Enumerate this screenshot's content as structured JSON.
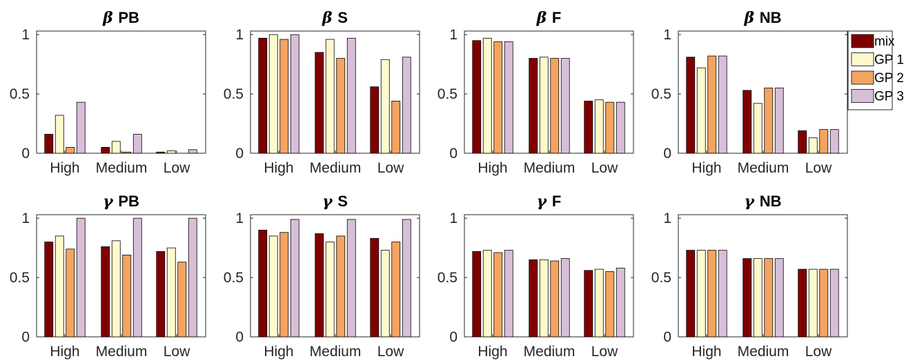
{
  "legend": [
    {
      "label": "mix",
      "color": "#800000"
    },
    {
      "label": "GP 1",
      "color": "#FFFACD"
    },
    {
      "label": "GP 2",
      "color": "#F4A460"
    },
    {
      "label": "GP 3",
      "color": "#D8BFD8"
    }
  ],
  "chart_data": [
    {
      "type": "bar",
      "title_greek": "β",
      "title_text": "PB",
      "categories": [
        "High",
        "Medium",
        "Low"
      ],
      "ylim": [
        0,
        1.03
      ],
      "yticks": [
        0,
        0.5,
        1
      ],
      "ytick_labels": [
        "0",
        "0.5",
        "1"
      ],
      "series": [
        {
          "name": "mix",
          "values": [
            0.16,
            0.05,
            0.01
          ]
        },
        {
          "name": "GP 1",
          "values": [
            0.32,
            0.1,
            0.02
          ]
        },
        {
          "name": "GP 2",
          "values": [
            0.05,
            0.01,
            0.0
          ]
        },
        {
          "name": "GP 3",
          "values": [
            0.43,
            0.16,
            0.03
          ]
        }
      ]
    },
    {
      "type": "bar",
      "title_greek": "β",
      "title_text": "S",
      "categories": [
        "High",
        "Medium",
        "Low"
      ],
      "ylim": [
        0,
        1.03
      ],
      "yticks": [
        0,
        0.5,
        1
      ],
      "ytick_labels": [
        "0",
        "0.5",
        "1"
      ],
      "series": [
        {
          "name": "mix",
          "values": [
            0.97,
            0.85,
            0.56
          ]
        },
        {
          "name": "GP 1",
          "values": [
            1.0,
            0.96,
            0.79
          ]
        },
        {
          "name": "GP 2",
          "values": [
            0.96,
            0.8,
            0.44
          ]
        },
        {
          "name": "GP 3",
          "values": [
            1.0,
            0.97,
            0.81
          ]
        }
      ]
    },
    {
      "type": "bar",
      "title_greek": "β",
      "title_text": "F",
      "categories": [
        "High",
        "Medium",
        "Low"
      ],
      "ylim": [
        0,
        1.03
      ],
      "yticks": [
        0,
        0.5,
        1
      ],
      "ytick_labels": [
        "0",
        "0.5",
        "1"
      ],
      "series": [
        {
          "name": "mix",
          "values": [
            0.95,
            0.8,
            0.44
          ]
        },
        {
          "name": "GP 1",
          "values": [
            0.97,
            0.81,
            0.45
          ]
        },
        {
          "name": "GP 2",
          "values": [
            0.94,
            0.8,
            0.43
          ]
        },
        {
          "name": "GP 3",
          "values": [
            0.94,
            0.8,
            0.43
          ]
        }
      ]
    },
    {
      "type": "bar",
      "title_greek": "β",
      "title_text": "NB",
      "categories": [
        "High",
        "Medium",
        "Low"
      ],
      "ylim": [
        0,
        1.03
      ],
      "yticks": [
        0,
        0.5,
        1
      ],
      "ytick_labels": [
        "0",
        "0.5",
        "1"
      ],
      "series": [
        {
          "name": "mix",
          "values": [
            0.81,
            0.53,
            0.19
          ]
        },
        {
          "name": "GP 1",
          "values": [
            0.72,
            0.42,
            0.13
          ]
        },
        {
          "name": "GP 2",
          "values": [
            0.82,
            0.55,
            0.2
          ]
        },
        {
          "name": "GP 3",
          "values": [
            0.82,
            0.55,
            0.2
          ]
        }
      ]
    },
    {
      "type": "bar",
      "title_greek": "γ",
      "title_text": "PB",
      "categories": [
        "High",
        "Medium",
        "Low"
      ],
      "ylim": [
        0,
        1.03
      ],
      "yticks": [
        0,
        0.5,
        1
      ],
      "ytick_labels": [
        "0",
        "0.5",
        "1"
      ],
      "series": [
        {
          "name": "mix",
          "values": [
            0.8,
            0.76,
            0.72
          ]
        },
        {
          "name": "GP 1",
          "values": [
            0.85,
            0.81,
            0.75
          ]
        },
        {
          "name": "GP 2",
          "values": [
            0.74,
            0.69,
            0.63
          ]
        },
        {
          "name": "GP 3",
          "values": [
            1.0,
            1.0,
            1.0
          ]
        }
      ]
    },
    {
      "type": "bar",
      "title_greek": "γ",
      "title_text": "S",
      "categories": [
        "High",
        "Medium",
        "Low"
      ],
      "ylim": [
        0,
        1.03
      ],
      "yticks": [
        0,
        0.5,
        1
      ],
      "ytick_labels": [
        "0",
        "0.5",
        "1"
      ],
      "series": [
        {
          "name": "mix",
          "values": [
            0.9,
            0.87,
            0.83
          ]
        },
        {
          "name": "GP 1",
          "values": [
            0.85,
            0.8,
            0.73
          ]
        },
        {
          "name": "GP 2",
          "values": [
            0.88,
            0.85,
            0.8
          ]
        },
        {
          "name": "GP 3",
          "values": [
            0.99,
            0.99,
            0.99
          ]
        }
      ]
    },
    {
      "type": "bar",
      "title_greek": "γ",
      "title_text": "F",
      "categories": [
        "High",
        "Medium",
        "Low"
      ],
      "ylim": [
        0,
        1.03
      ],
      "yticks": [
        0,
        0.5,
        1
      ],
      "ytick_labels": [
        "0",
        "0.5",
        "1"
      ],
      "series": [
        {
          "name": "mix",
          "values": [
            0.72,
            0.65,
            0.56
          ]
        },
        {
          "name": "GP 1",
          "values": [
            0.73,
            0.65,
            0.57
          ]
        },
        {
          "name": "GP 2",
          "values": [
            0.71,
            0.64,
            0.55
          ]
        },
        {
          "name": "GP 3",
          "values": [
            0.73,
            0.66,
            0.58
          ]
        }
      ]
    },
    {
      "type": "bar",
      "title_greek": "γ",
      "title_text": "NB",
      "categories": [
        "High",
        "Medium",
        "Low"
      ],
      "ylim": [
        0,
        1.03
      ],
      "yticks": [
        0,
        0.5,
        1
      ],
      "ytick_labels": [
        "0",
        "0.5",
        "1"
      ],
      "series": [
        {
          "name": "mix",
          "values": [
            0.73,
            0.66,
            0.57
          ]
        },
        {
          "name": "GP 1",
          "values": [
            0.73,
            0.66,
            0.57
          ]
        },
        {
          "name": "GP 2",
          "values": [
            0.73,
            0.66,
            0.57
          ]
        },
        {
          "name": "GP 3",
          "values": [
            0.73,
            0.66,
            0.57
          ]
        }
      ]
    }
  ]
}
